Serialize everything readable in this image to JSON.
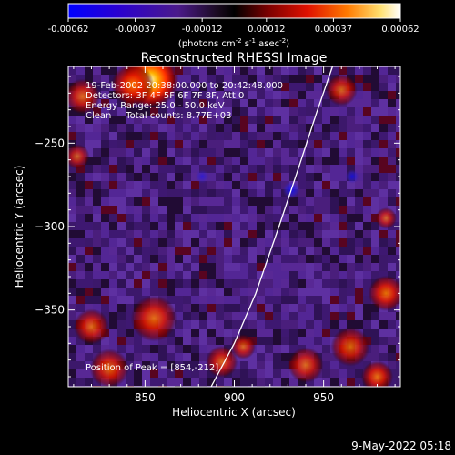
{
  "chart_data": {
    "type": "heatmap",
    "title": "Reconstructed RHESSI Image",
    "xlabel": "Heliocentric X (arcsec)",
    "ylabel": "Heliocentric Y (arcsec)",
    "x_ticks": [
      850,
      900,
      950
    ],
    "y_ticks": [
      -250,
      -300,
      -350
    ],
    "xlim": [
      807,
      993
    ],
    "ylim": [
      -396,
      -204
    ],
    "colorbar": {
      "ticks": [
        "-0.00062",
        "-0.00037",
        "-0.00012",
        "0.00012",
        "0.00037",
        "0.00062"
      ],
      "min": -0.00062,
      "max": 0.00062,
      "label_main": "(photons cm",
      "label_exp1": "-2",
      "label_mid": " s",
      "label_exp2": "-1",
      "label_mid2": " asec",
      "label_exp3": "-2",
      "label_end": ")"
    },
    "annotations": [
      "19-Feb-2002 20:38:00.000 to 20:42:48.000",
      "Detectors: 3F 4F 5F 6F 7F 8F, Att 0",
      "Energy Range: 25.0 - 50.0 keV",
      "Clean     Total counts: 8.77E+03"
    ],
    "peak_label": "Position of Peak = [854,-212]",
    "peak": [
      854,
      -212
    ],
    "limb_curve": [
      [
        887,
        -396
      ],
      [
        900,
        -370
      ],
      [
        912,
        -340
      ],
      [
        925,
        -300
      ],
      [
        935,
        -268
      ],
      [
        946,
        -232
      ],
      [
        955,
        -204
      ]
    ],
    "hot_regions": [
      {
        "x": 853,
        "y": -212,
        "r": 16,
        "level": 1.0
      },
      {
        "x": 843,
        "y": -215,
        "r": 12,
        "level": 0.8
      },
      {
        "x": 815,
        "y": -222,
        "r": 10,
        "level": 0.55
      },
      {
        "x": 812,
        "y": -258,
        "r": 7,
        "level": 0.4
      },
      {
        "x": 820,
        "y": -360,
        "r": 10,
        "level": 0.6
      },
      {
        "x": 855,
        "y": -355,
        "r": 13,
        "level": 0.65
      },
      {
        "x": 830,
        "y": -385,
        "r": 11,
        "level": 0.6
      },
      {
        "x": 893,
        "y": -381,
        "r": 9,
        "level": 0.55
      },
      {
        "x": 905,
        "y": -372,
        "r": 7,
        "level": 0.5
      },
      {
        "x": 940,
        "y": -383,
        "r": 10,
        "level": 0.55
      },
      {
        "x": 965,
        "y": -372,
        "r": 11,
        "level": 0.6
      },
      {
        "x": 985,
        "y": -340,
        "r": 10,
        "level": 0.75
      },
      {
        "x": 980,
        "y": -390,
        "r": 9,
        "level": 0.7
      },
      {
        "x": 960,
        "y": -218,
        "r": 9,
        "level": 0.5
      },
      {
        "x": 985,
        "y": -295,
        "r": 6,
        "level": 0.4
      }
    ],
    "cold_regions": [
      {
        "x": 932,
        "y": -278,
        "r": 5,
        "level": 0.85
      },
      {
        "x": 966,
        "y": -270,
        "r": 4,
        "level": 0.75
      },
      {
        "x": 882,
        "y": -270,
        "r": 4,
        "level": 0.55
      }
    ]
  },
  "footer": {
    "timestamp": "9-May-2022 05:18"
  }
}
